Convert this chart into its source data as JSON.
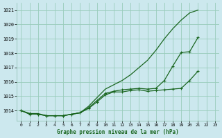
{
  "title": "Graphe pression niveau de la mer (hPa)",
  "bg_color": "#cce8ee",
  "grid_color": "#99ccbb",
  "line_color": "#1a6620",
  "xlim": [
    -0.5,
    23.5
  ],
  "ylim": [
    1013.3,
    1021.5
  ],
  "yticks": [
    1014,
    1015,
    1016,
    1017,
    1018,
    1019,
    1020,
    1021
  ],
  "xticks": [
    0,
    1,
    2,
    3,
    4,
    5,
    6,
    7,
    8,
    9,
    10,
    11,
    12,
    13,
    14,
    15,
    16,
    17,
    18,
    19,
    20,
    21,
    22,
    23
  ],
  "series": {
    "line_smooth": [
      1014.0,
      1013.8,
      1013.8,
      1013.65,
      1013.65,
      1013.65,
      1013.75,
      1013.85,
      1014.3,
      1014.9,
      1015.5,
      1015.8,
      1016.1,
      1016.5,
      1017.0,
      1017.5,
      1018.2,
      1019.0,
      1019.7,
      1020.3,
      1020.8,
      1021.0,
      null,
      null
    ],
    "line_mid": [
      1014.0,
      1013.8,
      1013.75,
      1013.65,
      1013.65,
      1013.65,
      1013.75,
      1013.85,
      1014.2,
      1014.7,
      1015.2,
      1015.35,
      1015.45,
      1015.5,
      1015.55,
      1015.5,
      1015.55,
      1016.1,
      1017.1,
      1018.05,
      1018.1,
      1019.1,
      null,
      null
    ],
    "line_flat": [
      1014.0,
      1013.75,
      1013.75,
      1013.65,
      1013.65,
      1013.65,
      1013.75,
      1013.85,
      1014.15,
      1014.6,
      1015.1,
      1015.3,
      1015.3,
      1015.4,
      1015.45,
      1015.35,
      1015.4,
      1015.45,
      1015.5,
      1015.55,
      1016.1,
      1016.75,
      null,
      null
    ]
  }
}
